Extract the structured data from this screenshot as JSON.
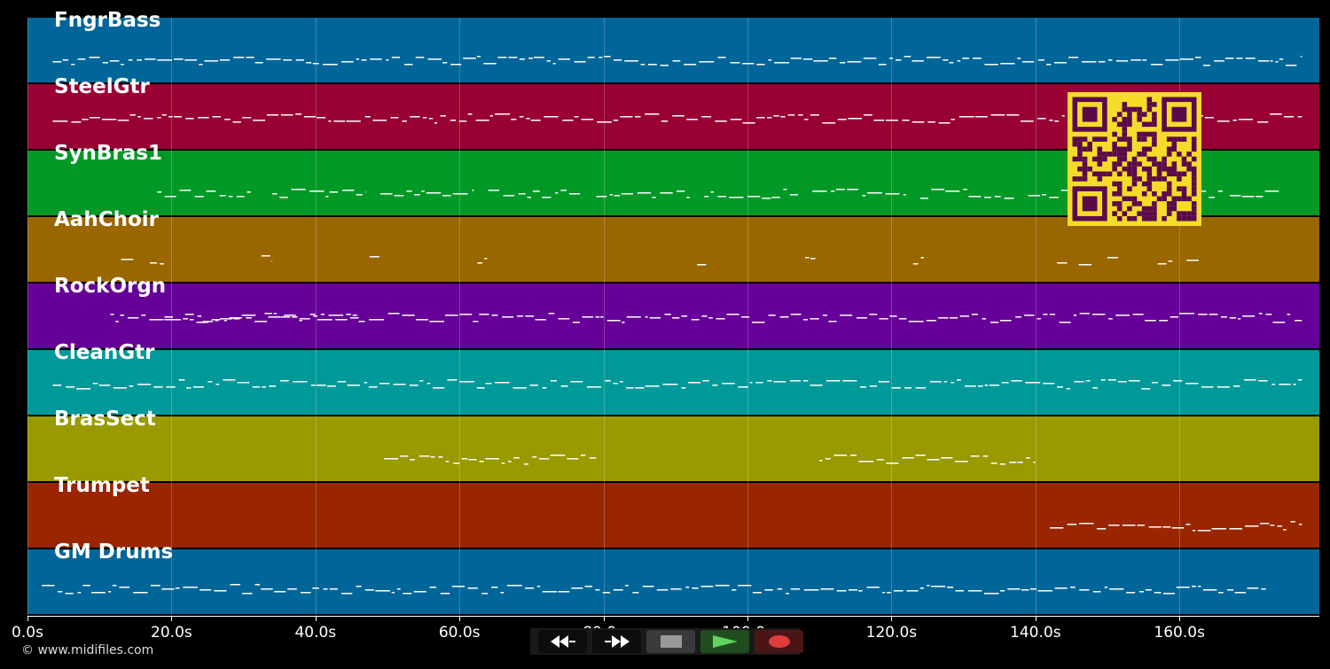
{
  "tracks": [
    {
      "name": "FngrBass",
      "color": "#006699"
    },
    {
      "name": "SteelGtr",
      "color": "#990033"
    },
    {
      "name": "SynBras1",
      "color": "#009926"
    },
    {
      "name": "AahChoir",
      "color": "#996600"
    },
    {
      "name": "RockOrgn",
      "color": "#660099"
    },
    {
      "name": "CleanGtr",
      "color": "#009999"
    },
    {
      "name": "BrasSect",
      "color": "#999900"
    },
    {
      "name": "Trumpet",
      "color": "#992600"
    },
    {
      "name": "GM Drums",
      "color": "#006699"
    }
  ],
  "time_axis": {
    "unit": "s",
    "ticks": [
      "0.0s",
      "20.0s",
      "40.0s",
      "60.0s",
      "80.0s",
      "100.0s",
      "120.0s",
      "140.0s",
      "160.0s"
    ],
    "max_seconds": 180
  },
  "transport": {
    "rewind_icon": "rewind-icon",
    "fast_forward_icon": "fast-forward-icon",
    "stop_icon": "stop-icon",
    "play_icon": "play-icon",
    "record_icon": "record-icon"
  },
  "copyright": "© www.midifiles.com",
  "colors": {
    "background": "#000000",
    "qr_fg": "#5a0a4a",
    "qr_bg": "#f5dc2a",
    "play": "#5fd35f",
    "record": "#e03c3c"
  }
}
